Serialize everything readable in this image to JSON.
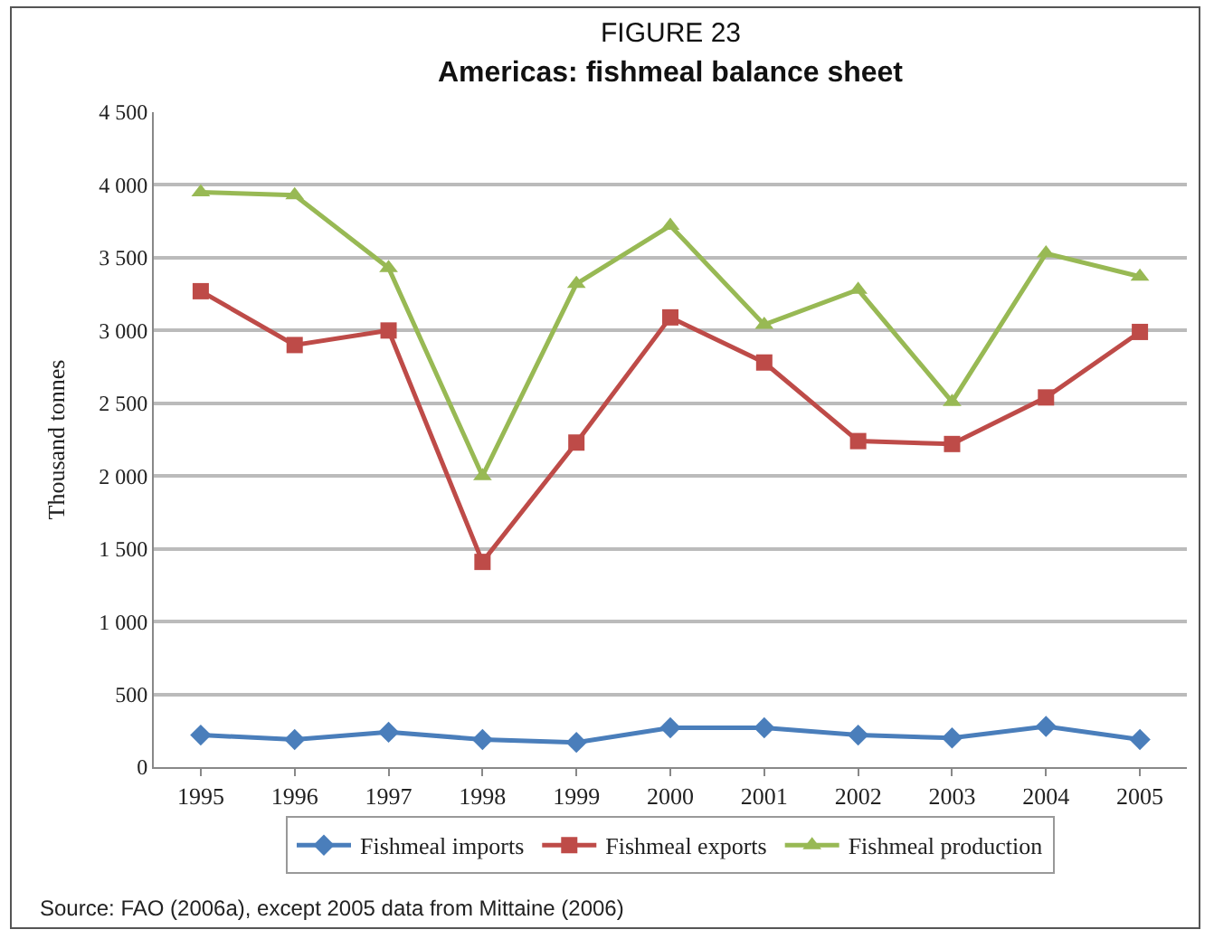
{
  "chart_data": {
    "type": "line",
    "subtitle": "FIGURE 23",
    "title": "Americas: fishmeal balance sheet",
    "ylabel": "Thousand tonnes",
    "categories": [
      "1995",
      "1996",
      "1997",
      "1998",
      "1999",
      "2000",
      "2001",
      "2002",
      "2003",
      "2004",
      "2005"
    ],
    "series": [
      {
        "name": "Fishmeal imports",
        "color": "#4a7ebb",
        "marker": "diamond",
        "values": [
          220,
          190,
          240,
          190,
          170,
          270,
          270,
          220,
          200,
          280,
          190
        ]
      },
      {
        "name": "Fishmeal exports",
        "color": "#be4b48",
        "marker": "square",
        "values": [
          3270,
          2900,
          3000,
          1410,
          2230,
          3090,
          2780,
          2240,
          2220,
          2540,
          2990
        ]
      },
      {
        "name": "Fishmeal production",
        "color": "#98b954",
        "marker": "triangle",
        "values": [
          3950,
          3930,
          3430,
          2000,
          3320,
          3720,
          3040,
          3280,
          2510,
          3530,
          3370
        ]
      }
    ],
    "ylim": [
      0,
      4500
    ],
    "yticks": [
      0,
      {
        "value": 500,
        "label": "500"
      },
      {
        "value": 1000,
        "label": "1 000"
      },
      {
        "value": 1500,
        "label": "1 500"
      },
      {
        "value": 2000,
        "label": "2 000"
      },
      {
        "value": 2500,
        "label": "2 500"
      },
      {
        "value": 3000,
        "label": "3 000"
      },
      {
        "value": 3500,
        "label": "3 500"
      },
      {
        "value": 4000,
        "label": "4 000"
      },
      {
        "value": 4500,
        "label": "4 500"
      }
    ],
    "grid": "y",
    "legend": "bottom",
    "line_style": "solid",
    "annotations": [
      "Source: FAO (2006a), except 2005 data from Mittaine (2006)"
    ]
  }
}
